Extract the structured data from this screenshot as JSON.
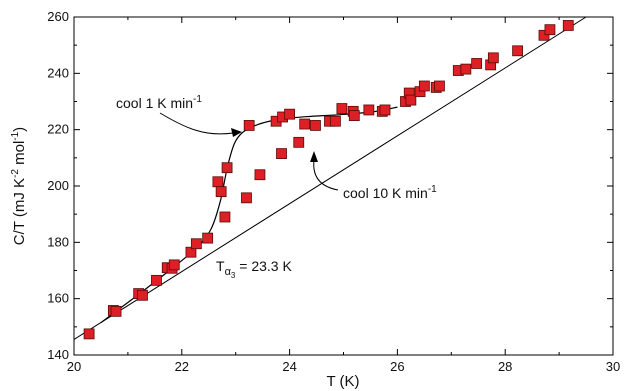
{
  "chart_data": {
    "type": "scatter",
    "title": "",
    "xlabel": "T (K)",
    "ylabel_parts": {
      "main": "C/T (mJ K",
      "sup1": "-2",
      "mid": " mol",
      "sup2": "-1",
      "end": ")"
    },
    "xlim": [
      20,
      30
    ],
    "ylim": [
      140,
      260
    ],
    "xticks": [
      20,
      22,
      24,
      26,
      28,
      30
    ],
    "yticks": [
      140,
      160,
      180,
      200,
      220,
      240,
      260
    ],
    "grid": false,
    "marker_color": "#dd1f26",
    "marker_edge": "#5a0a0a",
    "series": [
      {
        "values": [
          [
            20.28,
            147.5
          ],
          [
            20.73,
            155.8
          ],
          [
            20.78,
            155.5
          ],
          [
            21.2,
            161.8
          ],
          [
            21.27,
            161.2
          ],
          [
            21.53,
            166.5
          ],
          [
            21.73,
            171.0
          ],
          [
            21.82,
            170.8
          ],
          [
            21.86,
            172.0
          ],
          [
            22.17,
            176.5
          ],
          [
            22.27,
            179.5
          ],
          [
            22.48,
            181.5
          ],
          [
            22.67,
            201.5
          ],
          [
            22.73,
            198.0
          ],
          [
            22.84,
            206.5
          ],
          [
            22.8,
            189.0
          ],
          [
            23.2,
            195.8
          ],
          [
            23.25,
            221.5
          ],
          [
            23.45,
            204.0
          ],
          [
            23.75,
            223.0
          ],
          [
            23.85,
            211.5
          ],
          [
            23.87,
            224.5
          ],
          [
            24.0,
            225.5
          ],
          [
            24.17,
            215.5
          ],
          [
            24.28,
            222.0
          ],
          [
            24.48,
            221.5
          ],
          [
            24.74,
            223.0
          ],
          [
            24.85,
            223.0
          ],
          [
            24.97,
            227.5
          ],
          [
            25.18,
            226.5
          ],
          [
            25.2,
            225.0
          ],
          [
            25.47,
            227.0
          ],
          [
            25.72,
            226.5
          ],
          [
            25.77,
            227.0
          ],
          [
            26.15,
            230.0
          ],
          [
            26.22,
            233.0
          ],
          [
            26.25,
            230.5
          ],
          [
            26.42,
            233.5
          ],
          [
            26.5,
            235.5
          ],
          [
            26.72,
            235.0
          ],
          [
            26.78,
            235.5
          ],
          [
            27.13,
            241.0
          ],
          [
            27.27,
            241.5
          ],
          [
            27.47,
            243.5
          ],
          [
            27.73,
            243.0
          ],
          [
            27.78,
            245.5
          ],
          [
            28.23,
            248.0
          ],
          [
            28.72,
            253.5
          ],
          [
            28.83,
            255.5
          ],
          [
            29.17,
            257.0
          ]
        ]
      }
    ],
    "fit_line": {
      "x": [
        20,
        29.5
      ],
      "y": [
        145.5,
        260
      ]
    },
    "transition_curve": [
      [
        20.5,
        151.5
      ],
      [
        21.3,
        163.0
      ],
      [
        21.9,
        172.0
      ],
      [
        22.3,
        178.5
      ],
      [
        22.55,
        185.0
      ],
      [
        22.72,
        195.0
      ],
      [
        22.85,
        207.0
      ],
      [
        23.0,
        216.0
      ],
      [
        23.25,
        220.5
      ],
      [
        23.7,
        223.3
      ],
      [
        24.3,
        224.6
      ],
      [
        25.0,
        225.4
      ],
      [
        25.6,
        226.5
      ],
      [
        26.0,
        228.0
      ]
    ],
    "annotations": {
      "cool1": {
        "base": "cool 1 K min",
        "sup": "-1"
      },
      "cool10": {
        "base": "cool 10 K min",
        "sup": "-1"
      },
      "talpha": {
        "T": "T",
        "sub": "α",
        "subsub": "3",
        "rest": " = 23.3 K"
      }
    }
  }
}
